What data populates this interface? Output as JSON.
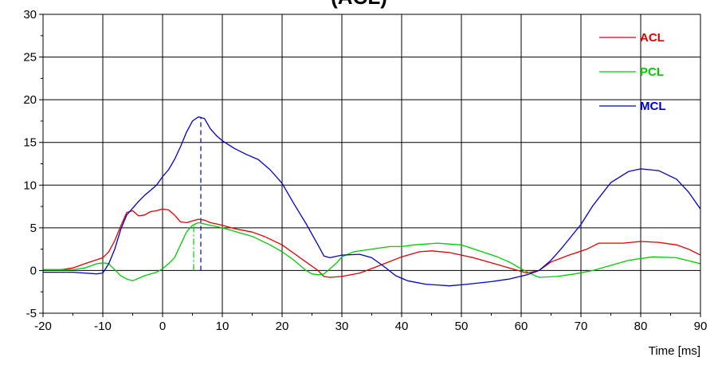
{
  "chart_data": {
    "type": "line",
    "title_partial": "(ACL)",
    "xlabel": "Time [ms]",
    "ylabel": "",
    "xlim": [
      -20,
      90
    ],
    "ylim": [
      -5,
      30
    ],
    "x_ticks": [
      -20,
      -10,
      0,
      10,
      20,
      30,
      40,
      50,
      60,
      70,
      80,
      90
    ],
    "y_ticks": [
      -5,
      0,
      5,
      10,
      15,
      20,
      25,
      30
    ],
    "grid": true,
    "legend_position": "top-right",
    "series": [
      {
        "name": "ACL",
        "color": "#e00000",
        "points": [
          [
            -20,
            0.1
          ],
          [
            -17,
            0.1
          ],
          [
            -15,
            0.3
          ],
          [
            -13,
            0.8
          ],
          [
            -10,
            1.5
          ],
          [
            -9,
            2.2
          ],
          [
            -8,
            3.5
          ],
          [
            -7,
            5.2
          ],
          [
            -6,
            6.8
          ],
          [
            -5,
            7.0
          ],
          [
            -4,
            6.4
          ],
          [
            -3,
            6.5
          ],
          [
            -2,
            6.9
          ],
          [
            -1,
            7.0
          ],
          [
            0,
            7.2
          ],
          [
            1,
            7.1
          ],
          [
            2,
            6.5
          ],
          [
            3,
            5.7
          ],
          [
            4,
            5.6
          ],
          [
            5,
            5.8
          ],
          [
            6,
            6.0
          ],
          [
            7,
            5.9
          ],
          [
            8,
            5.6
          ],
          [
            10,
            5.3
          ],
          [
            12,
            4.9
          ],
          [
            15,
            4.5
          ],
          [
            17,
            4.0
          ],
          [
            20,
            3.0
          ],
          [
            22,
            2.0
          ],
          [
            24,
            1.0
          ],
          [
            26,
            0.0
          ],
          [
            27,
            -0.7
          ],
          [
            28,
            -0.8
          ],
          [
            30,
            -0.7
          ],
          [
            33,
            -0.3
          ],
          [
            36,
            0.5
          ],
          [
            40,
            1.6
          ],
          [
            43,
            2.2
          ],
          [
            45,
            2.3
          ],
          [
            48,
            2.1
          ],
          [
            52,
            1.5
          ],
          [
            56,
            0.7
          ],
          [
            59,
            0.1
          ],
          [
            61,
            -0.3
          ],
          [
            63,
            0.0
          ],
          [
            65,
            1.0
          ],
          [
            68,
            1.8
          ],
          [
            71,
            2.5
          ],
          [
            73,
            3.2
          ],
          [
            77,
            3.2
          ],
          [
            80,
            3.4
          ],
          [
            83,
            3.3
          ],
          [
            86,
            3.0
          ],
          [
            88,
            2.5
          ],
          [
            90,
            1.8
          ]
        ]
      },
      {
        "name": "PCL",
        "color": "#00cc00",
        "points": [
          [
            -20,
            0.1
          ],
          [
            -15,
            0.1
          ],
          [
            -13,
            0.3
          ],
          [
            -11,
            0.8
          ],
          [
            -10,
            0.9
          ],
          [
            -9,
            0.8
          ],
          [
            -8,
            0.1
          ],
          [
            -7,
            -0.6
          ],
          [
            -6,
            -1.0
          ],
          [
            -5,
            -1.2
          ],
          [
            -4,
            -0.9
          ],
          [
            -3,
            -0.6
          ],
          [
            -1,
            -0.2
          ],
          [
            0,
            0.2
          ],
          [
            1,
            0.8
          ],
          [
            2,
            1.5
          ],
          [
            3,
            3.0
          ],
          [
            4,
            4.5
          ],
          [
            5,
            5.3
          ],
          [
            6,
            5.6
          ],
          [
            8,
            5.3
          ],
          [
            10,
            5.0
          ],
          [
            12,
            4.6
          ],
          [
            15,
            4.0
          ],
          [
            18,
            3.0
          ],
          [
            20,
            2.2
          ],
          [
            22,
            1.2
          ],
          [
            24,
            0.0
          ],
          [
            25,
            -0.4
          ],
          [
            26,
            -0.5
          ],
          [
            27,
            -0.4
          ],
          [
            29,
            0.8
          ],
          [
            30,
            1.6
          ],
          [
            32,
            2.2
          ],
          [
            35,
            2.5
          ],
          [
            38,
            2.8
          ],
          [
            40,
            2.8
          ],
          [
            42,
            3.0
          ],
          [
            46,
            3.2
          ],
          [
            50,
            3.0
          ],
          [
            53,
            2.3
          ],
          [
            56,
            1.6
          ],
          [
            58,
            1.0
          ],
          [
            60,
            0.2
          ],
          [
            62,
            -0.5
          ],
          [
            63,
            -0.8
          ],
          [
            66,
            -0.7
          ],
          [
            69,
            -0.4
          ],
          [
            72,
            0.0
          ],
          [
            75,
            0.6
          ],
          [
            78,
            1.2
          ],
          [
            82,
            1.6
          ],
          [
            86,
            1.5
          ],
          [
            90,
            0.8
          ]
        ]
      },
      {
        "name": "MCL",
        "color": "#0000cc",
        "points": [
          [
            -20,
            -0.2
          ],
          [
            -15,
            -0.2
          ],
          [
            -13,
            -0.3
          ],
          [
            -11,
            -0.4
          ],
          [
            -10,
            -0.3
          ],
          [
            -9,
            0.8
          ],
          [
            -8,
            2.5
          ],
          [
            -7,
            4.8
          ],
          [
            -6,
            6.5
          ],
          [
            -5,
            7.3
          ],
          [
            -4,
            8.1
          ],
          [
            -3,
            8.8
          ],
          [
            -2,
            9.4
          ],
          [
            -1,
            10.0
          ],
          [
            0,
            11.0
          ],
          [
            1,
            11.8
          ],
          [
            2,
            13.0
          ],
          [
            3,
            14.5
          ],
          [
            4,
            16.2
          ],
          [
            5,
            17.5
          ],
          [
            6,
            18.0
          ],
          [
            7,
            17.8
          ],
          [
            8,
            16.6
          ],
          [
            9,
            15.8
          ],
          [
            10,
            15.2
          ],
          [
            12,
            14.3
          ],
          [
            14,
            13.6
          ],
          [
            16,
            13.0
          ],
          [
            18,
            11.8
          ],
          [
            20,
            10.2
          ],
          [
            22,
            7.8
          ],
          [
            24,
            5.5
          ],
          [
            26,
            3.0
          ],
          [
            27,
            1.7
          ],
          [
            28,
            1.5
          ],
          [
            30,
            1.8
          ],
          [
            33,
            1.9
          ],
          [
            35,
            1.5
          ],
          [
            37,
            0.5
          ],
          [
            39,
            -0.6
          ],
          [
            41,
            -1.2
          ],
          [
            44,
            -1.6
          ],
          [
            46,
            -1.7
          ],
          [
            48,
            -1.8
          ],
          [
            51,
            -1.6
          ],
          [
            55,
            -1.3
          ],
          [
            58,
            -1.0
          ],
          [
            61,
            -0.5
          ],
          [
            63,
            0.0
          ],
          [
            65,
            1.2
          ],
          [
            67,
            2.8
          ],
          [
            70,
            5.4
          ],
          [
            72,
            7.6
          ],
          [
            75,
            10.3
          ],
          [
            78,
            11.6
          ],
          [
            80,
            11.9
          ],
          [
            83,
            11.7
          ],
          [
            86,
            10.7
          ],
          [
            88,
            9.2
          ],
          [
            90,
            7.2
          ]
        ]
      }
    ],
    "markers": [
      {
        "name": "MCL-peak-marker",
        "color": "#0000cc",
        "dash": "dashed",
        "x": 6.4,
        "y_from": 0,
        "y_to": 18.0
      },
      {
        "name": "PCL-peak-marker",
        "color": "#00cc00",
        "dash": "dashdot",
        "x": 5.2,
        "y_from": 0,
        "y_to": 5.4
      }
    ]
  }
}
